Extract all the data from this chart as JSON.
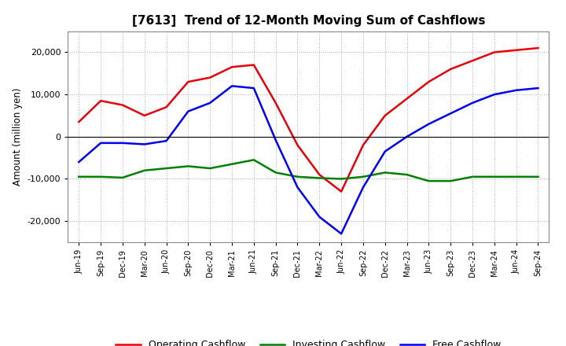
{
  "title": "[7613]  Trend of 12-Month Moving Sum of Cashflows",
  "ylabel": "Amount (million yen)",
  "xlabels": [
    "Jun-19",
    "Sep-19",
    "Dec-19",
    "Mar-20",
    "Jun-20",
    "Sep-20",
    "Dec-20",
    "Mar-21",
    "Jun-21",
    "Sep-21",
    "Dec-21",
    "Mar-22",
    "Jun-22",
    "Sep-22",
    "Dec-22",
    "Mar-23",
    "Jun-23",
    "Sep-23",
    "Dec-23",
    "Mar-24",
    "Jun-24",
    "Sep-24"
  ],
  "operating": [
    3500,
    8500,
    7500,
    5000,
    7000,
    13000,
    14000,
    16500,
    17000,
    8000,
    -2000,
    -9000,
    -13000,
    -2000,
    5000,
    9000,
    13000,
    16000,
    18000,
    20000,
    20500,
    21000
  ],
  "investing": [
    -9500,
    -9500,
    -9700,
    -8000,
    -7500,
    -7000,
    -7500,
    -6500,
    -5500,
    -8500,
    -9500,
    -9800,
    -10000,
    -9500,
    -8500,
    -9000,
    -10500,
    -10500,
    -9500,
    -9500,
    -9500,
    -9500
  ],
  "free": [
    -6000,
    -1500,
    -1500,
    -1800,
    -1000,
    6000,
    8000,
    12000,
    11500,
    -800,
    -12000,
    -19000,
    -23000,
    -12000,
    -3500,
    0,
    3000,
    5500,
    8000,
    10000,
    11000,
    11500
  ],
  "operating_color": "#e8000a",
  "investing_color": "#008000",
  "free_color": "#0000ee",
  "ylim": [
    -25000,
    25000
  ],
  "yticks": [
    -20000,
    -10000,
    0,
    10000,
    20000
  ],
  "background_color": "#ffffff",
  "grid_color": "#aaaaaa",
  "line_width": 1.8
}
